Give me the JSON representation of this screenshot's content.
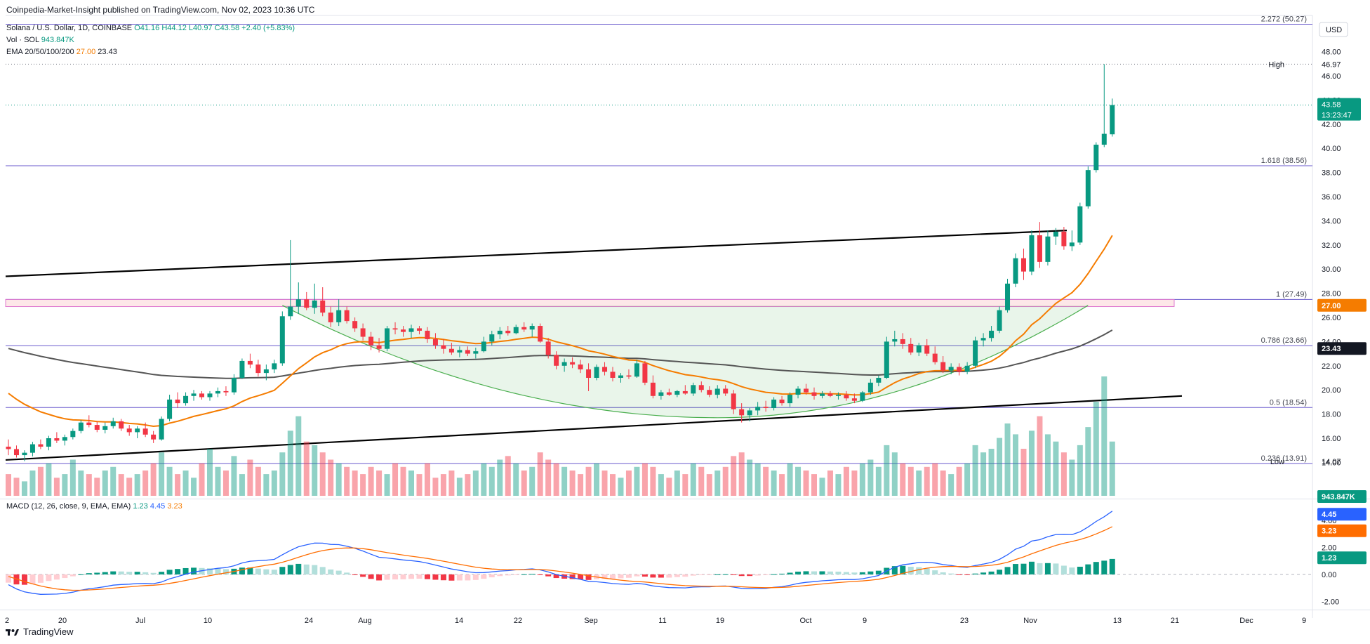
{
  "attribution": "Coinpedia-Market-Insight published on TradingView.com, Nov 02, 2023 10:36 UTC",
  "legend": {
    "symbol": "Solana / U.S. Dollar, 1D, COINBASE",
    "ohlc": {
      "o": "O41.16",
      "h": "H44.12",
      "l": "L40.97",
      "c": "C43.58",
      "chg": "+2.40 (+5.83%)"
    },
    "vol_label": "Vol · SOL",
    "vol_value": "943.847K",
    "ema_label": "EMA 20/50/100/200",
    "ema_a": "27.00",
    "ema_b": "23.43",
    "macd_label": "MACD (12, 26, close, 9, EMA, EMA)",
    "macd_a": "1.23",
    "macd_b": "4.45",
    "macd_c": "3.23"
  },
  "currency": "USD",
  "footer": "TradingView",
  "colors": {
    "up": "#089981",
    "down": "#f23645",
    "ema_fast": "#f57c00",
    "ema_slow": "#555555",
    "fib": "#6a5acd",
    "macd": "#2962ff",
    "signal": "#ff6d00",
    "cup": "#4caf50"
  },
  "chart_data": [
    {
      "type": "candlestick",
      "title": "Solana / U.S. Dollar, 1D, COINBASE",
      "yticks": [
        14,
        16,
        18,
        20,
        22,
        24,
        26,
        28,
        30,
        32,
        34,
        36,
        38,
        40,
        42,
        44,
        46,
        48
      ],
      "ytick_labels": [
        "14.00",
        "16.00",
        "18.00",
        "20.00",
        "22.00",
        "24.00",
        "26.00",
        "28.00",
        "30.00",
        "32.00",
        "34.00",
        "36.00",
        "38.00",
        "40.00",
        "42.00",
        "44.00",
        "46.00",
        "48.00"
      ],
      "ylim": [
        11,
        51
      ],
      "xtick_labels": [
        "2",
        "20",
        "Jul",
        "10",
        "24",
        "Aug",
        "14",
        "22",
        "Sep",
        "11",
        "19",
        "Oct",
        "9",
        "23",
        "Nov",
        "13",
        "21",
        "Dec",
        "9"
      ],
      "fib_levels": [
        {
          "label": "2.272 (50.27)",
          "value": 50.27
        },
        {
          "label": "1.618 (38.56)",
          "value": 38.56
        },
        {
          "label": "1 (27.49)",
          "value": 27.49
        },
        {
          "label": "0.786 (23.66)",
          "value": 23.66
        },
        {
          "label": "0.5 (18.54)",
          "value": 18.54
        },
        {
          "label": "0.236 (13.91)",
          "value": 13.91
        }
      ],
      "price_tags": {
        "high_label": "High",
        "high": "46.97",
        "low_label": "Low",
        "low": "14.07",
        "last": "43.58",
        "countdown": "13:23:47",
        "ema_a": "27.00",
        "ema_b": "23.43",
        "volume": "943.847K"
      },
      "candles": [
        [
          15.3,
          15.9,
          14.6,
          15.1
        ],
        [
          15.1,
          15.4,
          14.4,
          14.6
        ],
        [
          14.6,
          15.0,
          14.1,
          14.8
        ],
        [
          14.8,
          15.7,
          14.5,
          15.5
        ],
        [
          15.5,
          15.9,
          15.1,
          15.3
        ],
        [
          15.3,
          16.2,
          15.0,
          16.0
        ],
        [
          16.0,
          16.5,
          15.6,
          15.8
        ],
        [
          15.8,
          16.3,
          15.4,
          16.1
        ],
        [
          16.1,
          16.8,
          15.9,
          16.6
        ],
        [
          16.6,
          17.5,
          16.4,
          17.3
        ],
        [
          17.3,
          17.9,
          16.9,
          17.1
        ],
        [
          17.1,
          17.4,
          16.5,
          16.7
        ],
        [
          16.7,
          17.3,
          16.4,
          17.0
        ],
        [
          17.0,
          17.7,
          16.8,
          17.4
        ],
        [
          17.4,
          17.6,
          16.6,
          16.8
        ],
        [
          16.8,
          17.1,
          16.2,
          16.5
        ],
        [
          16.5,
          17.0,
          16.0,
          16.8
        ],
        [
          16.8,
          17.3,
          16.1,
          16.3
        ],
        [
          16.3,
          16.6,
          15.6,
          15.9
        ],
        [
          15.9,
          17.8,
          15.8,
          17.6
        ],
        [
          17.6,
          19.6,
          17.4,
          19.2
        ],
        [
          19.2,
          19.8,
          18.5,
          18.9
        ],
        [
          18.9,
          19.8,
          18.7,
          19.5
        ],
        [
          19.5,
          20.0,
          19.1,
          19.7
        ],
        [
          19.7,
          19.9,
          19.2,
          19.4
        ],
        [
          19.4,
          19.9,
          19.1,
          19.7
        ],
        [
          19.7,
          20.2,
          19.4,
          19.9
        ],
        [
          19.9,
          20.3,
          19.5,
          19.8
        ],
        [
          19.8,
          21.3,
          19.6,
          21.0
        ],
        [
          21.0,
          22.6,
          20.9,
          22.4
        ],
        [
          22.4,
          23.0,
          21.8,
          22.1
        ],
        [
          22.1,
          22.5,
          21.1,
          21.4
        ],
        [
          21.4,
          22.1,
          20.8,
          21.7
        ],
        [
          21.7,
          22.5,
          21.4,
          22.2
        ],
        [
          22.2,
          26.5,
          22.0,
          26.1
        ],
        [
          26.1,
          32.4,
          25.8,
          26.9
        ],
        [
          26.9,
          28.9,
          26.3,
          27.5
        ],
        [
          27.5,
          28.1,
          26.6,
          26.8
        ],
        [
          26.8,
          28.8,
          26.3,
          27.4
        ],
        [
          27.4,
          28.5,
          26.1,
          26.4
        ],
        [
          26.4,
          26.9,
          25.2,
          25.6
        ],
        [
          25.6,
          27.5,
          25.3,
          26.6
        ],
        [
          26.6,
          26.9,
          25.5,
          25.7
        ],
        [
          25.7,
          26.0,
          24.8,
          25.1
        ],
        [
          25.1,
          25.5,
          24.1,
          24.4
        ],
        [
          24.4,
          24.8,
          23.3,
          23.7
        ],
        [
          23.7,
          24.3,
          23.1,
          23.4
        ],
        [
          23.4,
          25.3,
          23.2,
          25.1
        ],
        [
          25.1,
          25.6,
          24.6,
          25.0
        ],
        [
          25.0,
          25.3,
          24.4,
          24.8
        ],
        [
          24.8,
          25.4,
          24.3,
          25.1
        ],
        [
          25.1,
          25.3,
          24.6,
          24.9
        ],
        [
          24.9,
          25.2,
          23.9,
          24.2
        ],
        [
          24.2,
          24.7,
          23.4,
          23.7
        ],
        [
          23.7,
          24.2,
          23.0,
          23.4
        ],
        [
          23.4,
          23.9,
          22.9,
          23.1
        ],
        [
          23.1,
          23.6,
          22.7,
          23.3
        ],
        [
          23.3,
          23.6,
          22.8,
          23.0
        ],
        [
          23.0,
          23.5,
          22.6,
          23.2
        ],
        [
          23.2,
          24.4,
          23.1,
          24.0
        ],
        [
          24.0,
          24.9,
          23.7,
          24.6
        ],
        [
          24.6,
          25.2,
          24.2,
          24.9
        ],
        [
          24.9,
          25.3,
          24.5,
          24.7
        ],
        [
          24.7,
          25.4,
          24.6,
          25.2
        ],
        [
          25.2,
          25.6,
          24.8,
          25.0
        ],
        [
          25.0,
          25.5,
          24.4,
          25.3
        ],
        [
          25.3,
          25.5,
          23.9,
          24.0
        ],
        [
          24.0,
          24.3,
          22.6,
          22.9
        ],
        [
          22.9,
          23.2,
          21.7,
          22.0
        ],
        [
          22.0,
          22.6,
          21.5,
          22.3
        ],
        [
          22.3,
          22.7,
          21.8,
          22.1
        ],
        [
          22.1,
          22.5,
          21.4,
          21.7
        ],
        [
          21.7,
          22.2,
          19.9,
          21.0
        ],
        [
          21.0,
          22.1,
          20.8,
          21.9
        ],
        [
          21.9,
          22.3,
          21.2,
          21.5
        ],
        [
          21.5,
          21.9,
          20.7,
          21.0
        ],
        [
          21.0,
          21.4,
          20.6,
          21.2
        ],
        [
          21.2,
          21.7,
          20.9,
          21.1
        ],
        [
          21.1,
          22.5,
          21.0,
          22.2
        ],
        [
          22.2,
          22.4,
          20.4,
          20.6
        ],
        [
          20.6,
          21.2,
          19.3,
          19.5
        ],
        [
          19.5,
          20.0,
          19.2,
          19.8
        ],
        [
          19.8,
          20.1,
          19.5,
          19.6
        ],
        [
          19.6,
          20.0,
          19.4,
          19.9
        ],
        [
          19.9,
          20.4,
          19.6,
          19.7
        ],
        [
          19.7,
          20.6,
          19.5,
          20.4
        ],
        [
          20.4,
          20.7,
          19.8,
          20.0
        ],
        [
          20.0,
          20.3,
          19.4,
          19.6
        ],
        [
          19.6,
          20.4,
          19.3,
          20.1
        ],
        [
          20.1,
          20.4,
          19.5,
          19.7
        ],
        [
          19.7,
          20.0,
          18.0,
          18.4
        ],
        [
          18.4,
          18.9,
          17.3,
          17.9
        ],
        [
          17.9,
          18.5,
          17.4,
          18.3
        ],
        [
          18.3,
          19.0,
          17.9,
          18.6
        ],
        [
          18.6,
          19.1,
          18.2,
          18.5
        ],
        [
          18.5,
          19.4,
          18.3,
          19.2
        ],
        [
          19.2,
          19.5,
          18.7,
          18.9
        ],
        [
          18.9,
          19.8,
          18.6,
          19.6
        ],
        [
          19.6,
          20.3,
          19.3,
          20.1
        ],
        [
          20.1,
          20.5,
          19.6,
          19.8
        ],
        [
          19.8,
          20.2,
          19.2,
          19.5
        ],
        [
          19.5,
          19.9,
          19.3,
          19.7
        ],
        [
          19.7,
          19.9,
          19.4,
          19.5
        ],
        [
          19.5,
          19.8,
          19.2,
          19.6
        ],
        [
          19.6,
          19.9,
          19.1,
          19.3
        ],
        [
          19.3,
          19.7,
          18.9,
          19.1
        ],
        [
          19.1,
          19.9,
          19.0,
          19.8
        ],
        [
          19.8,
          20.9,
          19.6,
          20.6
        ],
        [
          20.6,
          21.2,
          20.3,
          21.0
        ],
        [
          21.0,
          24.4,
          20.9,
          24.0
        ],
        [
          24.0,
          24.9,
          23.6,
          24.2
        ],
        [
          24.2,
          24.7,
          23.4,
          23.8
        ],
        [
          23.8,
          24.3,
          22.9,
          23.1
        ],
        [
          23.1,
          23.9,
          22.8,
          23.7
        ],
        [
          23.7,
          24.2,
          22.8,
          23.0
        ],
        [
          23.0,
          23.6,
          22.1,
          22.3
        ],
        [
          22.3,
          22.8,
          21.4,
          21.6
        ],
        [
          21.6,
          22.2,
          21.3,
          21.9
        ],
        [
          21.9,
          22.2,
          21.2,
          21.5
        ],
        [
          21.5,
          22.3,
          21.3,
          22.0
        ],
        [
          22.0,
          24.4,
          21.8,
          24.1
        ],
        [
          24.1,
          24.7,
          23.6,
          24.3
        ],
        [
          24.3,
          25.3,
          24.0,
          24.9
        ],
        [
          24.9,
          26.9,
          24.7,
          26.6
        ],
        [
          26.6,
          29.2,
          26.4,
          28.8
        ],
        [
          28.8,
          31.3,
          28.5,
          30.9
        ],
        [
          30.9,
          31.7,
          29.1,
          29.8
        ],
        [
          29.8,
          33.2,
          29.5,
          32.8
        ],
        [
          32.8,
          33.9,
          30.1,
          30.6
        ],
        [
          30.6,
          33.2,
          30.3,
          32.7
        ],
        [
          32.7,
          33.4,
          32.0,
          33.1
        ],
        [
          33.1,
          33.5,
          31.6,
          31.9
        ],
        [
          31.9,
          33.2,
          31.5,
          32.2
        ],
        [
          32.2,
          35.5,
          32.0,
          35.2
        ],
        [
          35.2,
          38.5,
          35.0,
          38.2
        ],
        [
          38.2,
          40.5,
          38.0,
          40.3
        ],
        [
          40.3,
          46.97,
          40.1,
          41.2
        ],
        [
          41.16,
          44.12,
          40.97,
          43.58
        ]
      ],
      "volume": [
        6,
        5,
        4,
        7,
        8,
        9,
        5,
        6,
        10,
        7,
        6,
        5,
        7,
        8,
        6,
        5,
        6,
        7,
        9,
        12,
        8,
        6,
        7,
        5,
        9,
        13,
        8,
        7,
        11,
        6,
        10,
        8,
        6,
        7,
        12,
        18,
        22,
        15,
        14,
        12,
        10,
        9,
        8,
        7,
        6,
        8,
        7,
        6,
        9,
        8,
        7,
        6,
        9,
        5,
        6,
        7,
        5,
        6,
        7,
        9,
        8,
        10,
        11,
        9,
        7,
        8,
        12,
        10,
        9,
        8,
        7,
        6,
        8,
        9,
        7,
        6,
        5,
        7,
        8,
        9,
        8,
        6,
        5,
        7,
        6,
        9,
        8,
        6,
        7,
        8,
        11,
        12,
        10,
        9,
        8,
        7,
        6,
        9,
        8,
        7,
        6,
        5,
        7,
        6,
        8,
        7,
        9,
        10,
        8,
        14,
        12,
        9,
        8,
        7,
        8,
        9,
        7,
        6,
        8,
        9,
        14,
        12,
        13,
        16,
        20,
        17,
        13,
        18,
        22,
        17,
        15,
        12,
        10,
        14,
        19,
        26,
        33,
        15
      ],
      "macd": {
        "ylim": [
          -2.6,
          5.5
        ],
        "yticks": [
          -2,
          0,
          2,
          4
        ],
        "ytick_labels": [
          "-2.00",
          "0.00",
          "2.00",
          "4.00"
        ]
      }
    }
  ]
}
